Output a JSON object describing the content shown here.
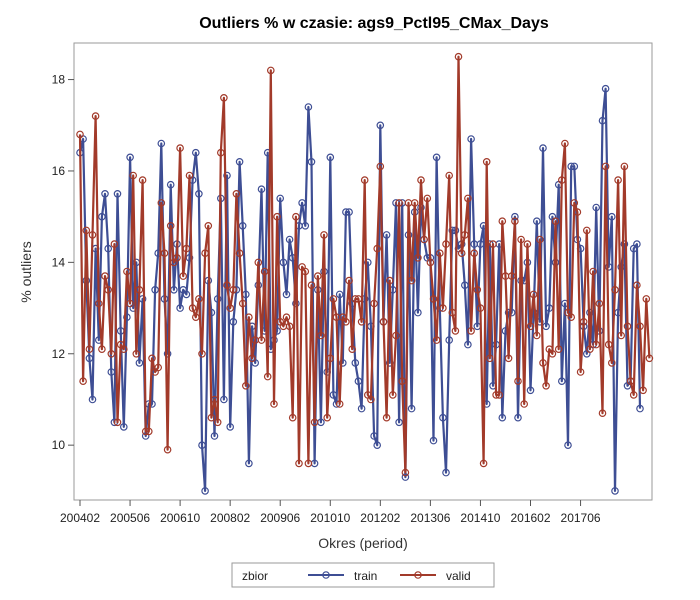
{
  "chart_data": {
    "type": "line",
    "title": "Outliers % w czasie: ags9_Pctl95_CMax_Days",
    "xlabel": "Okres (period)",
    "ylabel": "% outliers",
    "x_tick_labels": [
      "200402",
      "200506",
      "200610",
      "200802",
      "200906",
      "201010",
      "201202",
      "201306",
      "201410",
      "201602",
      "201706"
    ],
    "y_ticks": [
      10,
      12,
      14,
      16,
      18
    ],
    "y_tick_labels": [
      "10",
      "12",
      "14",
      "16",
      "18"
    ],
    "ylim": [
      8.8,
      18.8
    ],
    "grid": false,
    "legend_position": "bottom",
    "legend_title": "zbior",
    "series": [
      {
        "name": "train",
        "color": "#3E4E94",
        "marker": "circle",
        "values": [
          16.4,
          16.7,
          13.6,
          11.9,
          11.0,
          14.3,
          12.3,
          15.0,
          15.5,
          14.3,
          11.6,
          10.5,
          15.5,
          12.5,
          10.4,
          12.8,
          16.3,
          13.0,
          14.0,
          11.8,
          13.2,
          10.2,
          10.9,
          10.9,
          13.4,
          14.2,
          16.6,
          13.2,
          12.0,
          15.7,
          13.4,
          14.4,
          13.0,
          13.4,
          13.3,
          14.1,
          15.8,
          16.4,
          15.5,
          10.0,
          9.0,
          13.6,
          12.9,
          10.2,
          13.2,
          15.4,
          11.0,
          15.9,
          10.4,
          12.7,
          13.4,
          16.2,
          14.8,
          13.3,
          9.6,
          12.6,
          11.8,
          13.5,
          15.6,
          12.5,
          16.4,
          12.1,
          12.3,
          12.5,
          15.4,
          14.0,
          13.3,
          14.5,
          14.1,
          13.1,
          14.8,
          15.3,
          14.8,
          17.4,
          16.2,
          9.6,
          13.4,
          10.5,
          13.8,
          11.6,
          16.3,
          11.1,
          10.9,
          13.3,
          11.8,
          15.1,
          15.1,
          13.1,
          11.8,
          11.4,
          10.8,
          13.2,
          14.0,
          12.6,
          10.2,
          10.0,
          17.0,
          12.7,
          14.6,
          11.8,
          13.4,
          15.3,
          10.5,
          15.3,
          9.3,
          14.6,
          10.8,
          15.1,
          12.9,
          15.2,
          14.5,
          14.1,
          14.1,
          10.1,
          16.3,
          13.0,
          10.6,
          9.4,
          12.3,
          14.7,
          14.7,
          14.3,
          14.4,
          13.5,
          12.2,
          16.7,
          14.4,
          12.6,
          14.4,
          14.8,
          10.9,
          14.4,
          11.3,
          12.2,
          14.4,
          10.6,
          12.5,
          12.9,
          12.9,
          15.0,
          10.6,
          13.6,
          13.6,
          14.0,
          11.2,
          12.9,
          14.9,
          12.7,
          16.5,
          12.6,
          13.0,
          15.0,
          14.0,
          15.7,
          11.4,
          13.1,
          10.0,
          16.1,
          16.1,
          14.5,
          14.3,
          12.6,
          12.0,
          12.9,
          12.2,
          15.2,
          12.5,
          17.1,
          17.8,
          13.9,
          15.0,
          9.0,
          12.9,
          13.9,
          14.4,
          11.3,
          11.4,
          14.3,
          14.4,
          10.8
        ]
      },
      {
        "name": "valid",
        "color": "#A23A2A",
        "marker": "circle",
        "values": [
          16.8,
          11.4,
          14.7,
          12.1,
          14.6,
          17.2,
          13.1,
          12.1,
          13.7,
          13.4,
          12.0,
          14.4,
          10.5,
          12.2,
          12.1,
          13.8,
          13.1,
          15.9,
          12.0,
          13.4,
          15.8,
          10.3,
          10.3,
          11.9,
          11.6,
          11.7,
          15.3,
          14.2,
          9.9,
          14.8,
          14.0,
          14.1,
          16.5,
          13.7,
          14.3,
          15.9,
          13.0,
          12.8,
          13.2,
          12.0,
          14.2,
          14.8,
          10.6,
          11.0,
          10.5,
          16.4,
          17.6,
          13.5,
          13.0,
          13.4,
          15.5,
          14.2,
          13.1,
          11.3,
          12.8,
          11.9,
          12.3,
          14.0,
          12.3,
          13.8,
          11.5,
          18.2,
          10.9,
          15.0,
          12.7,
          12.6,
          12.8,
          12.6,
          10.6,
          15.0,
          9.6,
          13.9,
          13.8,
          9.6,
          13.5,
          10.5,
          13.7,
          12.4,
          14.6,
          10.6,
          11.9,
          13.2,
          12.8,
          10.9,
          12.8,
          12.7,
          13.6,
          12.1,
          13.2,
          13.2,
          12.7,
          15.8,
          11.1,
          11.0,
          13.1,
          14.3,
          16.1,
          12.7,
          10.6,
          13.6,
          11.1,
          12.4,
          15.3,
          11.4,
          9.4,
          15.3,
          13.6,
          15.3,
          14.1,
          15.8,
          14.5,
          15.4,
          14.0,
          13.2,
          12.3,
          14.2,
          13.0,
          14.4,
          15.9,
          12.9,
          12.5,
          18.5,
          14.2,
          14.6,
          15.4,
          12.5,
          14.2,
          13.4,
          13.0,
          9.6,
          16.2,
          11.9,
          14.4,
          11.1,
          11.1,
          14.9,
          13.7,
          11.9,
          13.7,
          14.9,
          11.4,
          14.5,
          10.9,
          14.4,
          12.6,
          13.3,
          12.4,
          14.5,
          11.8,
          11.3,
          12.1,
          12.0,
          14.9,
          12.1,
          15.8,
          16.6,
          12.9,
          12.8,
          15.3,
          15.1,
          11.6,
          12.7,
          14.7,
          12.1,
          13.8,
          12.2,
          13.1,
          10.7,
          16.1,
          12.2,
          11.8,
          13.4,
          15.8,
          12.4,
          16.1,
          12.6,
          11.4,
          11.1,
          13.5,
          12.6,
          11.2,
          13.2,
          11.9
        ]
      }
    ]
  }
}
